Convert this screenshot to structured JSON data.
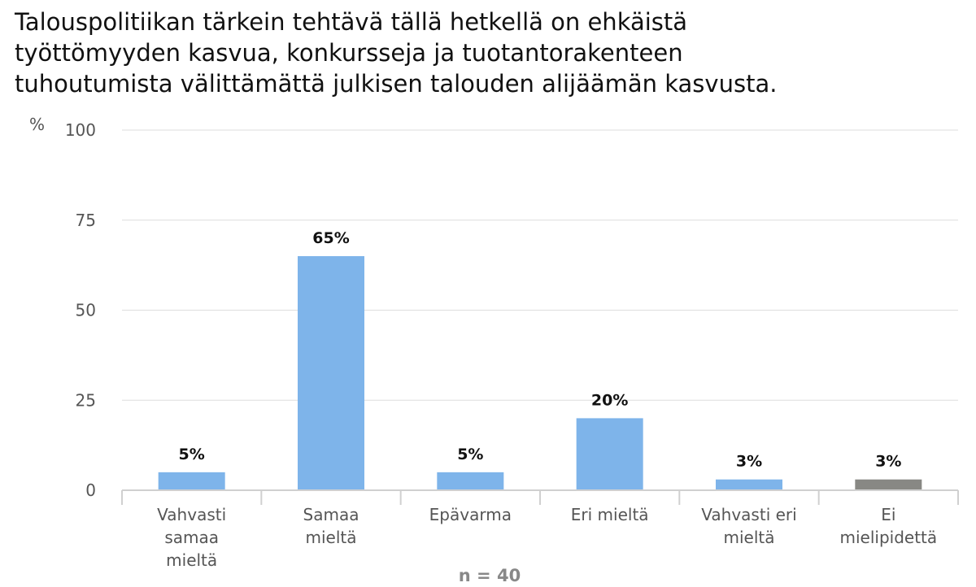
{
  "chart_data": {
    "type": "bar",
    "title": "Talouspolitiikan tärkein tehtävä tällä hetkellä on ehkäistä\ntyöttömyyden kasvua, konkursseja ja tuotantorakenteen\ntuhoutumista välittämättä julkisen talouden alijäämän kasvusta.",
    "ylabel": "%",
    "ylim": [
      0,
      100
    ],
    "yticks": [
      "0",
      "25",
      "50",
      "75",
      "100"
    ],
    "grid": true,
    "categories": [
      [
        "Vahvasti",
        "samaa",
        "mieltä"
      ],
      [
        "Samaa",
        "mieltä"
      ],
      [
        "Epävarma"
      ],
      [
        "Eri mieltä"
      ],
      [
        "Vahvasti eri",
        "mieltä"
      ],
      [
        "Ei",
        "mielipidettä"
      ]
    ],
    "values": [
      5,
      65,
      5,
      20,
      3,
      3
    ],
    "data_labels": [
      "5%",
      "65%",
      "5%",
      "20%",
      "3%",
      "3%"
    ],
    "colors": [
      "#7eb4ea",
      "#7eb4ea",
      "#7eb4ea",
      "#7eb4ea",
      "#7eb4ea",
      "#888884"
    ],
    "footnote": "n = 40"
  }
}
